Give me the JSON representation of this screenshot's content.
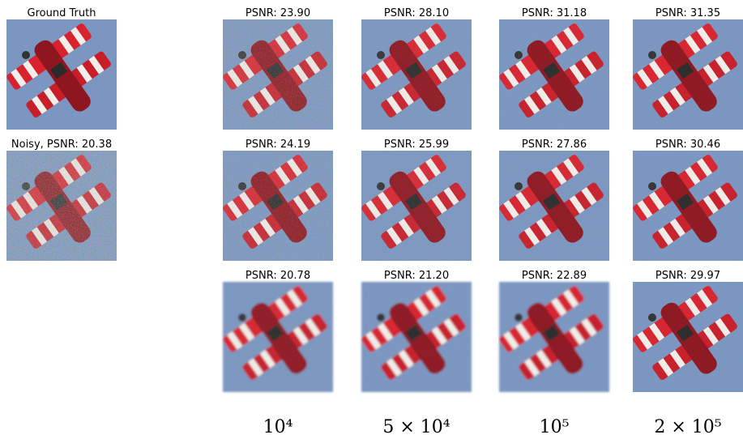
{
  "ground_truth": {
    "title": "Ground Truth"
  },
  "noisy": {
    "title": "Noisy, PSNR: 20.38"
  },
  "grid": {
    "rows": [
      [
        "PSNR: 23.90",
        "PSNR: 28.10",
        "PSNR: 31.18",
        "PSNR: 31.35"
      ],
      [
        "PSNR: 24.19",
        "PSNR: 25.99",
        "PSNR: 27.86",
        "PSNR: 30.46"
      ],
      [
        "PSNR: 20.78",
        "PSNR: 21.20",
        "PSNR: 22.89",
        "PSNR: 29.97"
      ]
    ],
    "columns": [
      "10⁴",
      "5 × 10⁴",
      "10⁵",
      "2 × 10⁵"
    ]
  }
}
